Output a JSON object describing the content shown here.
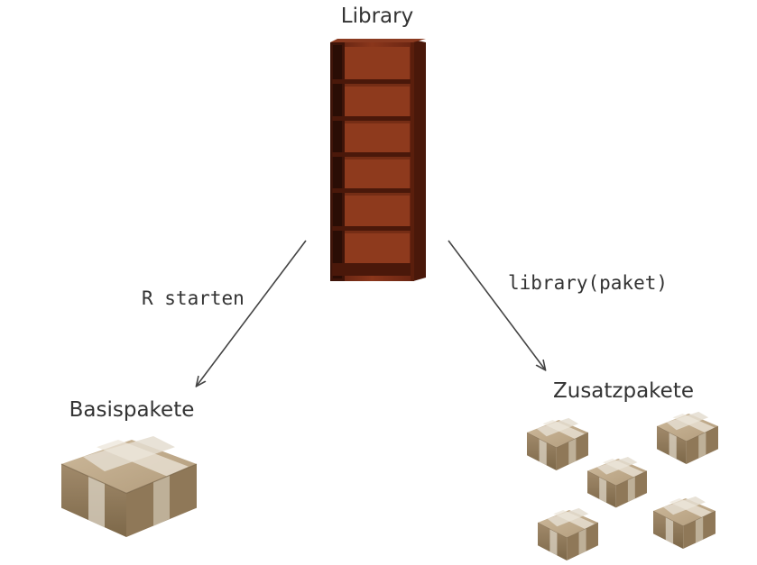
{
  "diagram": {
    "library_label": "Library",
    "left_edge_label": "R starten",
    "right_edge_label": "library(paket)",
    "base_packages_label": "Basispakete",
    "extra_packages_label": "Zusatzpakete"
  },
  "icons": {
    "bookshelf": "bookshelf-icon",
    "box": "box-icon"
  },
  "colors": {
    "shelf_wood": "#7a2e18",
    "shelf_dark": "#3e1409",
    "box_cardboard": "#b9a487",
    "box_tape": "#e4ddd0",
    "text": "#333333",
    "arrow": "#444444"
  }
}
